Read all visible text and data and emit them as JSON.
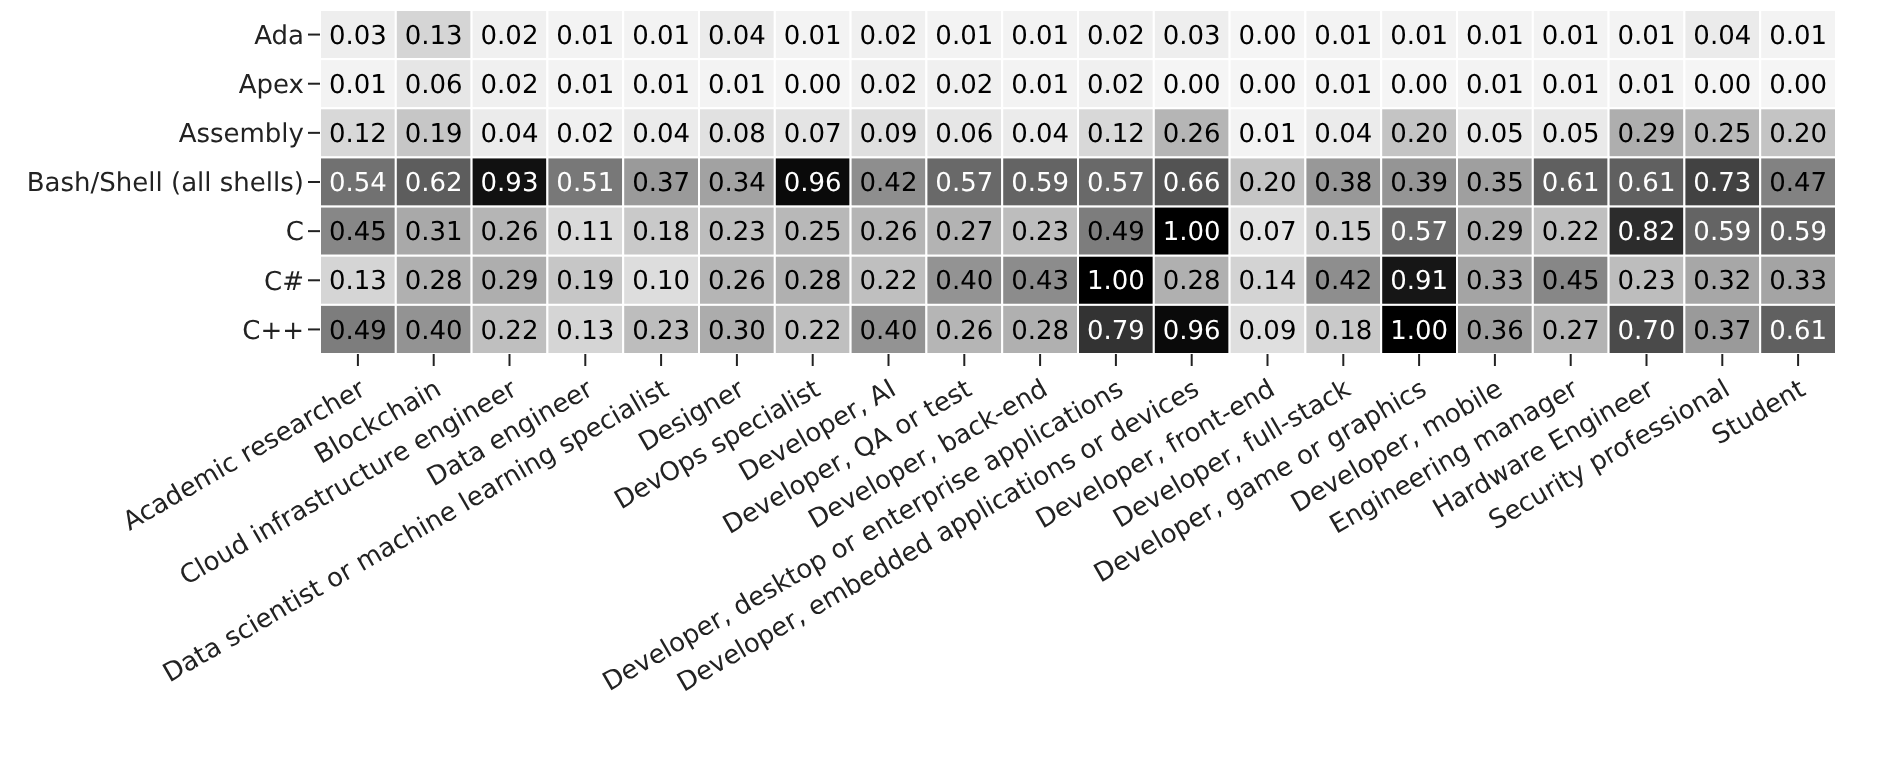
{
  "chart_data": {
    "type": "heatmap",
    "categories": [
      "Academic researcher",
      "Blockchain",
      "Cloud infrastructure engineer",
      "Data engineer",
      "Data scientist or machine learning specialist",
      "Designer",
      "DevOps specialist",
      "Developer, AI",
      "Developer, QA or test",
      "Developer, back-end",
      "Developer, desktop or enterprise applications",
      "Developer, embedded applications or devices",
      "Developer, front-end",
      "Developer, full-stack",
      "Developer, game or graphics",
      "Developer, mobile",
      "Engineering manager",
      "Hardware Engineer",
      "Security professional",
      "Student"
    ],
    "y_categories": [
      "Ada",
      "Apex",
      "Assembly",
      "Bash/Shell (all shells)",
      "C",
      "C#",
      "C++"
    ],
    "cells": [
      [
        0.03,
        0.13,
        0.02,
        0.01,
        0.01,
        0.04,
        0.01,
        0.02,
        0.01,
        0.01,
        0.02,
        0.03,
        0.0,
        0.01,
        0.01,
        0.01,
        0.01,
        0.01,
        0.04,
        0.01
      ],
      [
        0.01,
        0.06,
        0.02,
        0.01,
        0.01,
        0.01,
        0.0,
        0.02,
        0.02,
        0.01,
        0.02,
        0.0,
        0.0,
        0.01,
        0.0,
        0.01,
        0.01,
        0.01,
        0.0,
        0.0
      ],
      [
        0.12,
        0.19,
        0.04,
        0.02,
        0.04,
        0.08,
        0.07,
        0.09,
        0.06,
        0.04,
        0.12,
        0.26,
        0.01,
        0.04,
        0.2,
        0.05,
        0.05,
        0.29,
        0.25,
        0.2
      ],
      [
        0.54,
        0.62,
        0.93,
        0.51,
        0.37,
        0.34,
        0.96,
        0.42,
        0.57,
        0.59,
        0.57,
        0.66,
        0.2,
        0.38,
        0.39,
        0.35,
        0.61,
        0.61,
        0.73,
        0.47
      ],
      [
        0.45,
        0.31,
        0.26,
        0.11,
        0.18,
        0.23,
        0.25,
        0.26,
        0.27,
        0.23,
        0.49,
        1.0,
        0.07,
        0.15,
        0.57,
        0.29,
        0.22,
        0.82,
        0.59,
        0.59
      ],
      [
        0.13,
        0.28,
        0.29,
        0.19,
        0.1,
        0.26,
        0.28,
        0.22,
        0.4,
        0.43,
        1.0,
        0.28,
        0.14,
        0.42,
        0.91,
        0.33,
        0.45,
        0.23,
        0.32,
        0.33
      ],
      [
        0.49,
        0.4,
        0.22,
        0.13,
        0.23,
        0.3,
        0.22,
        0.4,
        0.26,
        0.28,
        0.79,
        0.96,
        0.09,
        0.18,
        1.0,
        0.36,
        0.27,
        0.7,
        0.37,
        0.61
      ]
    ],
    "cell_labels": [
      [
        "0.03",
        "0.13",
        "0.02",
        "0.01",
        "0.01",
        "0.04",
        "0.01",
        "0.02",
        "0.01",
        "0.01",
        "0.02",
        "0.03",
        "0.00",
        "0.01",
        "0.01",
        "0.01",
        "0.01",
        "0.01",
        "0.04",
        "0.01"
      ],
      [
        "0.01",
        "0.06",
        "0.02",
        "0.01",
        "0.01",
        "0.01",
        "0.00",
        "0.02",
        "0.02",
        "0.01",
        "0.02",
        "0.00",
        "0.00",
        "0.01",
        "0.00",
        "0.01",
        "0.01",
        "0.01",
        "0.00",
        "0.00"
      ],
      [
        "0.12",
        "0.19",
        "0.04",
        "0.02",
        "0.04",
        "0.08",
        "0.07",
        "0.09",
        "0.06",
        "0.04",
        "0.12",
        "0.26",
        "0.01",
        "0.04",
        "0.20",
        "0.05",
        "0.05",
        "0.29",
        "0.25",
        "0.20"
      ],
      [
        "0.54",
        "0.62",
        "0.93",
        "0.51",
        "0.37",
        "0.34",
        "0.96",
        "0.42",
        "0.57",
        "0.59",
        "0.57",
        "0.66",
        "0.20",
        "0.38",
        "0.39",
        "0.35",
        "0.61",
        "0.61",
        "0.73",
        "0.47"
      ],
      [
        "0.45",
        "0.31",
        "0.26",
        "0.11",
        "0.18",
        "0.23",
        "0.25",
        "0.26",
        "0.27",
        "0.23",
        "0.49",
        "1.00",
        "0.07",
        "0.15",
        "0.57",
        "0.29",
        "0.22",
        "0.82",
        "0.59",
        "0.59"
      ],
      [
        "0.13",
        "0.28",
        "0.29",
        "0.19",
        "0.10",
        "0.26",
        "0.28",
        "0.22",
        "0.40",
        "0.43",
        "1.00",
        "0.28",
        "0.14",
        "0.42",
        "0.91",
        "0.33",
        "0.45",
        "0.23",
        "0.32",
        "0.33"
      ],
      [
        "0.49",
        "0.40",
        "0.22",
        "0.13",
        "0.23",
        "0.30",
        "0.22",
        "0.40",
        "0.26",
        "0.28",
        "0.79",
        "0.96",
        "0.09",
        "0.18",
        "1.00",
        "0.36",
        "0.27",
        "0.70",
        "0.37",
        "0.61"
      ]
    ]
  }
}
